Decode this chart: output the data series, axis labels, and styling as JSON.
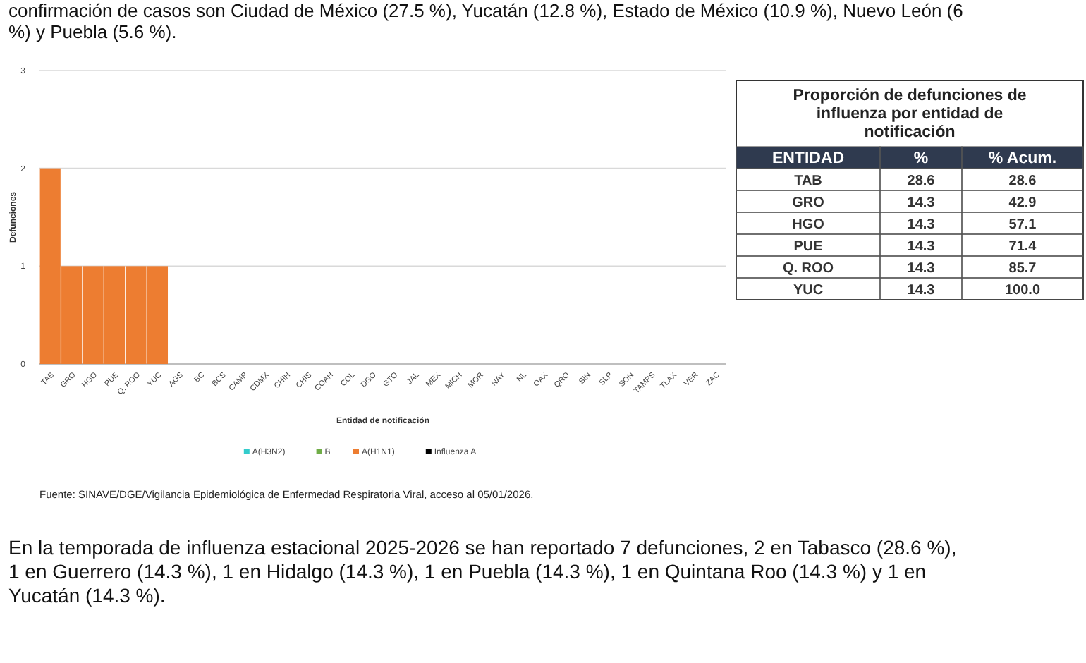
{
  "chart_data": {
    "type": "bar",
    "stacked": true,
    "ylabel": "Defunciones",
    "xlabel": "Entidad de notificación",
    "categories": [
      "TAB",
      "GRO",
      "HGO",
      "PUE",
      "Q. ROO",
      "YUC",
      "AGS",
      "BC",
      "BCS",
      "CAMP",
      "CDMX",
      "CHIH",
      "CHIS",
      "COAH",
      "COL",
      "DGO",
      "GTO",
      "JAL",
      "MEX",
      "MICH",
      "MOR",
      "NAY",
      "NL",
      "OAX",
      "QRO",
      "SIN",
      "SLP",
      "SON",
      "TAMPS",
      "TLAX",
      "VER",
      "ZAC"
    ],
    "series": [
      {
        "name": "A(H3N2)",
        "color": "#33cccc",
        "values": [
          0,
          0,
          0,
          0,
          0,
          0,
          0,
          0,
          0,
          0,
          0,
          0,
          0,
          0,
          0,
          0,
          0,
          0,
          0,
          0,
          0,
          0,
          0,
          0,
          0,
          0,
          0,
          0,
          0,
          0,
          0,
          0
        ]
      },
      {
        "name": "B",
        "color": "#70ad47",
        "values": [
          0,
          0,
          0,
          0,
          0,
          0,
          0,
          0,
          0,
          0,
          0,
          0,
          0,
          0,
          0,
          0,
          0,
          0,
          0,
          0,
          0,
          0,
          0,
          0,
          0,
          0,
          0,
          0,
          0,
          0,
          0,
          0
        ]
      },
      {
        "name": "A(H1N1)",
        "color": "#ed7d31",
        "values": [
          2,
          1,
          1,
          1,
          1,
          1,
          0,
          0,
          0,
          0,
          0,
          0,
          0,
          0,
          0,
          0,
          0,
          0,
          0,
          0,
          0,
          0,
          0,
          0,
          0,
          0,
          0,
          0,
          0,
          0,
          0,
          0
        ]
      },
      {
        "name": "Influenza A",
        "color": "#000000",
        "values": [
          0,
          0,
          0,
          0,
          0,
          0,
          0,
          0,
          0,
          0,
          0,
          0,
          0,
          0,
          0,
          0,
          0,
          0,
          0,
          0,
          0,
          0,
          0,
          0,
          0,
          0,
          0,
          0,
          0,
          0,
          0,
          0
        ]
      }
    ],
    "ylim": [
      0,
      3
    ],
    "yticks": [
      0,
      1,
      2,
      3
    ],
    "grid": "y",
    "legend": "bottom",
    "annotations": [
      "confirmación de casos son Ciudad de México (27.5 %), Yucatán (12.8 %), Estado de México (10.9 %), Nuevo León (6 %) y Puebla (5.6 %).",
      "Proporción de defunciones de influenza por entidad de notificación",
      "ENTIDAD",
      "%",
      "% Acum.",
      "TAB",
      "28.6",
      "28.6",
      "GRO",
      "14.3",
      "42.9",
      "HGO",
      "14.3",
      "57.1",
      "PUE",
      "14.3",
      "71.4",
      "Q. ROO",
      "14.3",
      "85.7",
      "YUC",
      "14.3",
      "100.0",
      "Fuente: SINAVE/DGE/Vigilancia Epidemiológica de Enfermedad Respiratoria Viral, acceso al 05/01/2026.",
      "En la temporada de influenza estacional 2025-2026 se han reportado 7 defunciones, 2 en Tabasco (28.6 %), 1 en Guerrero (14.3 %), 1 en Hidalgo (14.3 %), 1 en Puebla (14.3 %), 1 en Quintana Roo (14.3 %) y 1 en Yucatán (14.3 %)."
    ]
  }
}
